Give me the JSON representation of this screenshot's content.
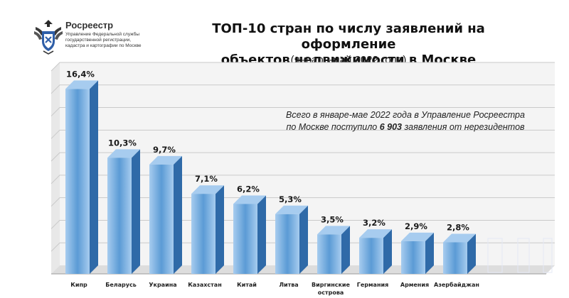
{
  "header": {
    "org_name": "Росреестр",
    "org_subtitle_lines": [
      "Управление Федеральной службы",
      "государственной регистрации,",
      "кадастра и картографии по Москве"
    ],
    "title_line1": "ТОП-10 стран по числу заявлений на оформление",
    "title_line2": "объектов недвижимости в Москве",
    "subtitle": "(январь-май 2022 года)"
  },
  "note": {
    "line1": "Всего в январе-мае 2022 года в Управление Росреестра",
    "line2_prefix": "по Москве поступило",
    "line2_number": "6 903",
    "line2_suffix": "заявления от нерезидентов"
  },
  "colors": {
    "bar_front": "#5b9bd5",
    "bar_light": "#a7ccef",
    "bar_side": "#2f6aa8",
    "grid": "#c9c9c9",
    "wall": "#f4f4f4"
  },
  "chart_data": {
    "type": "bar",
    "categories": [
      "Кипр",
      "Беларусь",
      "Украина",
      "Казахстан",
      "Китай",
      "Литва",
      "Виргинские острова",
      "Германия",
      "Армения",
      "Азербайджан"
    ],
    "values": [
      16.4,
      10.3,
      9.7,
      7.1,
      6.2,
      5.3,
      3.5,
      3.2,
      2.9,
      2.8
    ],
    "data_labels": [
      "16,4%",
      "10,3%",
      "9,7%",
      "7,1%",
      "6,2%",
      "5,3%",
      "3,5%",
      "3,2%",
      "2,9%",
      "2,8%"
    ],
    "ylim": [
      0,
      18
    ],
    "grid": true
  }
}
